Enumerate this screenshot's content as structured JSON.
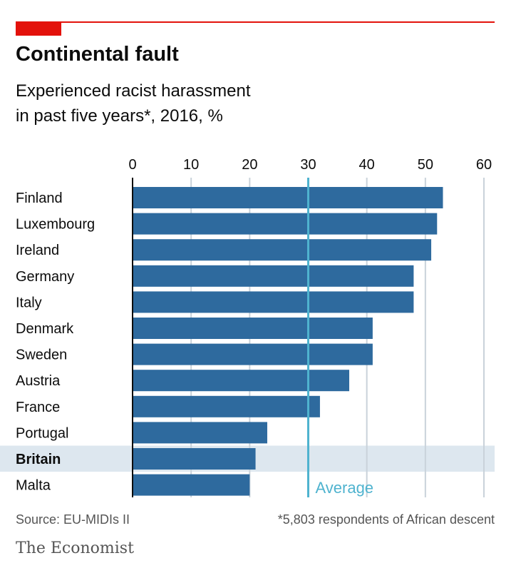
{
  "header": {
    "title": "Continental fault",
    "subtitle_line1": "Experienced racist harassment",
    "subtitle_line2": "in past five years*, 2016, %"
  },
  "footer": {
    "source": "Source: EU-MIDIs II",
    "footnote": "*5,803 respondents of African descent",
    "brand": "The Economist"
  },
  "colors": {
    "bar": "#2e6a9e",
    "average": "#4fb3cf",
    "highlight_band": "#dde7ef",
    "grid": "#c9d2da",
    "accent": "#e3120b"
  },
  "chart_data": {
    "type": "bar",
    "orientation": "horizontal",
    "categories": [
      "Finland",
      "Luxembourg",
      "Ireland",
      "Germany",
      "Italy",
      "Denmark",
      "Sweden",
      "Austria",
      "France",
      "Portugal",
      "Britain",
      "Malta"
    ],
    "values": [
      53,
      52,
      51,
      48,
      48,
      41,
      41,
      37,
      32,
      23,
      21,
      20
    ],
    "highlight": "Britain",
    "xticks": [
      0,
      10,
      20,
      30,
      40,
      50,
      60
    ],
    "xlim": [
      0,
      60
    ],
    "grid": true,
    "average": {
      "value": 30,
      "label": "Average"
    }
  }
}
